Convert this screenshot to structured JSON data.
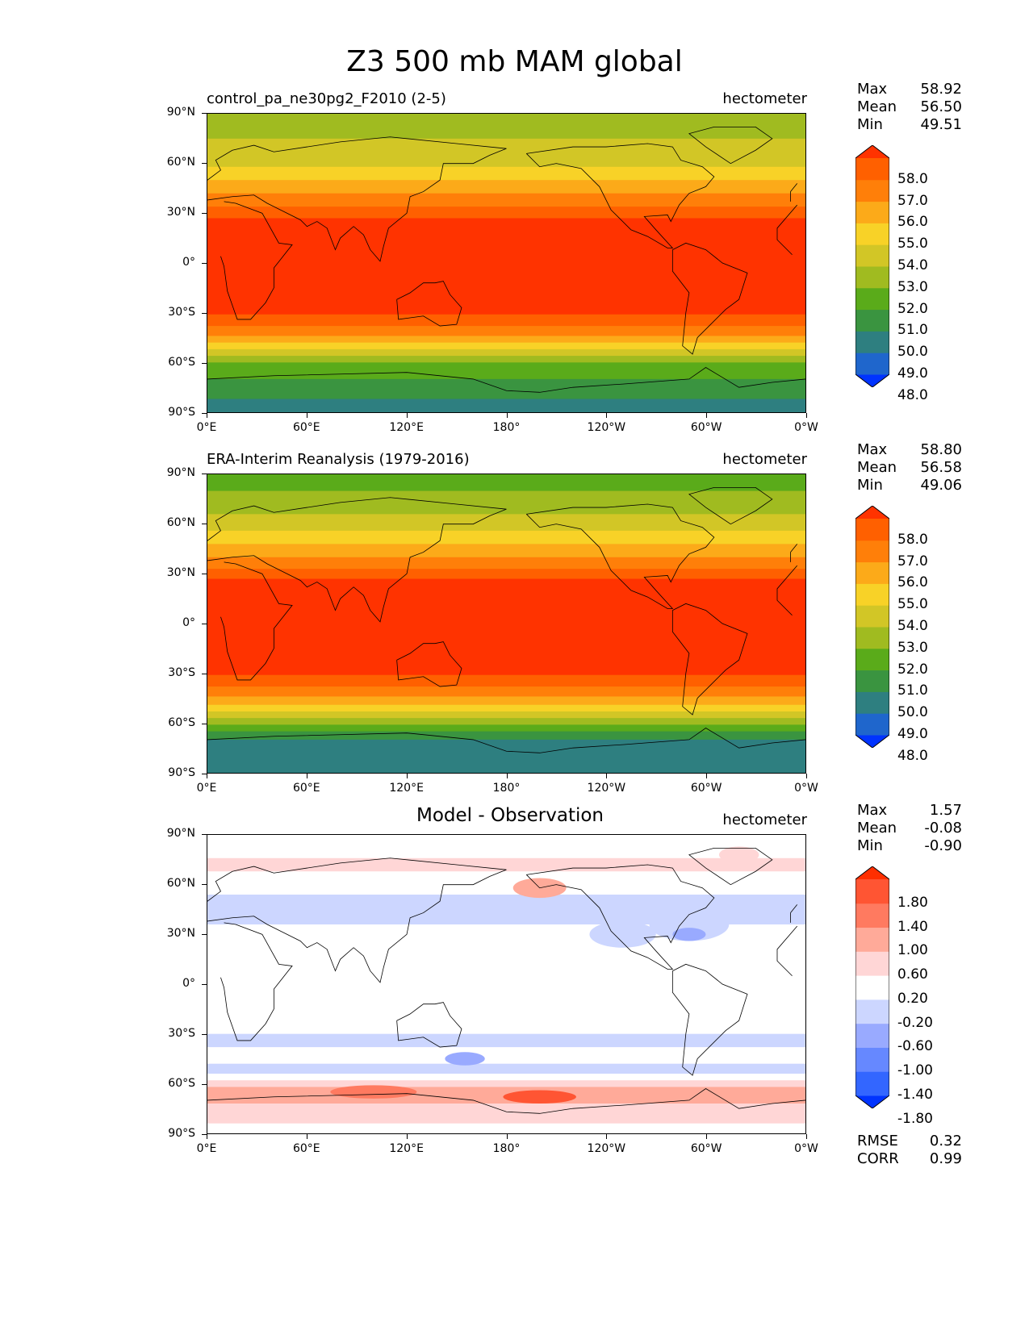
{
  "title": "Z3 500 mb MAM global",
  "panels": [
    {
      "title": "control_pa_ne30pg2_F2010 (2-5)",
      "units": "hectometer",
      "stats": [
        {
          "label": "Max",
          "value": "58.92"
        },
        {
          "label": "Mean",
          "value": "56.50"
        },
        {
          "label": "Min",
          "value": "49.51"
        }
      ],
      "colorbar": {
        "colors": [
          "#0033ff",
          "#1f66cc",
          "#2e7f80",
          "#3a9440",
          "#5aab1a",
          "#a0bb20",
          "#d2c626",
          "#f8d227",
          "#fcaa19",
          "#ff7f09",
          "#ff6000",
          "#ff3300"
        ],
        "labels": [
          "58.0",
          "57.0",
          "56.0",
          "55.0",
          "54.0",
          "53.0",
          "52.0",
          "51.0",
          "50.0",
          "49.0",
          "48.0"
        ]
      },
      "bands": [
        {
          "lat": 90,
          "color": "#a0bb20"
        },
        {
          "lat": 75,
          "color": "#d2c626"
        },
        {
          "lat": 58,
          "color": "#f8d227"
        },
        {
          "lat": 50,
          "color": "#fcaa19"
        },
        {
          "lat": 42,
          "color": "#ff7f09"
        },
        {
          "lat": 34,
          "color": "#ff6000"
        },
        {
          "lat": 27,
          "color": "#ff3300"
        },
        {
          "lat": -31,
          "color": "#ff6000"
        },
        {
          "lat": -38,
          "color": "#ff7f09"
        },
        {
          "lat": -44,
          "color": "#fcaa19"
        },
        {
          "lat": -48,
          "color": "#f8d227"
        },
        {
          "lat": -52,
          "color": "#d2c626"
        },
        {
          "lat": -56,
          "color": "#a0bb20"
        },
        {
          "lat": -60,
          "color": "#5aab1a"
        },
        {
          "lat": -70,
          "color": "#3a9440"
        },
        {
          "lat": -82,
          "color": "#2e7f80"
        }
      ]
    },
    {
      "title": "ERA-Interim Reanalysis (1979-2016)",
      "units": "hectometer",
      "stats": [
        {
          "label": "Max",
          "value": "58.80"
        },
        {
          "label": "Mean",
          "value": "56.58"
        },
        {
          "label": "Min",
          "value": "49.06"
        }
      ],
      "colorbar": {
        "colors": [
          "#0033ff",
          "#1f66cc",
          "#2e7f80",
          "#3a9440",
          "#5aab1a",
          "#a0bb20",
          "#d2c626",
          "#f8d227",
          "#fcaa19",
          "#ff7f09",
          "#ff6000",
          "#ff3300"
        ],
        "labels": [
          "58.0",
          "57.0",
          "56.0",
          "55.0",
          "54.0",
          "53.0",
          "52.0",
          "51.0",
          "50.0",
          "49.0",
          "48.0"
        ]
      },
      "bands": [
        {
          "lat": 90,
          "color": "#5aab1a"
        },
        {
          "lat": 80,
          "color": "#a0bb20"
        },
        {
          "lat": 66,
          "color": "#d2c626"
        },
        {
          "lat": 56,
          "color": "#f8d227"
        },
        {
          "lat": 48,
          "color": "#fcaa19"
        },
        {
          "lat": 40,
          "color": "#ff7f09"
        },
        {
          "lat": 33,
          "color": "#ff6000"
        },
        {
          "lat": 27,
          "color": "#ff3300"
        },
        {
          "lat": -31,
          "color": "#ff6000"
        },
        {
          "lat": -38,
          "color": "#ff7f09"
        },
        {
          "lat": -44,
          "color": "#fcaa19"
        },
        {
          "lat": -49,
          "color": "#f8d227"
        },
        {
          "lat": -53,
          "color": "#d2c626"
        },
        {
          "lat": -57,
          "color": "#a0bb20"
        },
        {
          "lat": -61,
          "color": "#5aab1a"
        },
        {
          "lat": -65,
          "color": "#3a9440"
        },
        {
          "lat": -70,
          "color": "#2e7f80"
        }
      ]
    },
    {
      "title": "Model - Observation",
      "units": "hectometer",
      "stats": [
        {
          "label": "Max",
          "value": "1.57"
        },
        {
          "label": "Mean",
          "value": "-0.08"
        },
        {
          "label": "Min",
          "value": "-0.90"
        }
      ],
      "extra": [
        {
          "label": "RMSE",
          "value": "0.32"
        },
        {
          "label": "CORR",
          "value": "0.99"
        }
      ],
      "colorbar": {
        "colors": [
          "#0033ff",
          "#3366ff",
          "#6688ff",
          "#99aaff",
          "#ccd6ff",
          "#ffffff",
          "#ffd6d6",
          "#ffaa99",
          "#ff7a60",
          "#ff5533",
          "#ff2f00"
        ],
        "labels": [
          "1.80",
          "1.40",
          "1.00",
          "0.60",
          "0.20",
          "-0.20",
          "-0.60",
          "-1.00",
          "-1.40",
          "-1.80"
        ]
      },
      "bands": [
        {
          "lat": 90,
          "color": "#ffffff"
        },
        {
          "lat": 76,
          "color": "#ffd6d6"
        },
        {
          "lat": 68,
          "color": "#ffffff"
        },
        {
          "lat": 54,
          "color": "#ccd6ff"
        },
        {
          "lat": 36,
          "color": "#ffffff"
        },
        {
          "lat": -30,
          "color": "#ccd6ff"
        },
        {
          "lat": -38,
          "color": "#ffffff"
        },
        {
          "lat": -48,
          "color": "#ccd6ff"
        },
        {
          "lat": -54,
          "color": "#ffffff"
        },
        {
          "lat": -58,
          "color": "#ffd6d6"
        },
        {
          "lat": -62,
          "color": "#ffaa99"
        },
        {
          "lat": -72,
          "color": "#ffd6d6"
        },
        {
          "lat": -84,
          "color": "#ffffff"
        }
      ],
      "blobs": [
        {
          "lon": 200,
          "lat": 58,
          "rx": 16,
          "ry": 6,
          "color": "#ffaa99"
        },
        {
          "lon": 100,
          "lat": -65,
          "rx": 26,
          "ry": 4,
          "color": "#ff7a60"
        },
        {
          "lon": 200,
          "lat": -68,
          "rx": 22,
          "ry": 4,
          "color": "#ff5533"
        },
        {
          "lon": 155,
          "lat": -45,
          "rx": 12,
          "ry": 4,
          "color": "#99aaff"
        },
        {
          "lon": 250,
          "lat": 30,
          "rx": 20,
          "ry": 8,
          "color": "#ccd6ff"
        },
        {
          "lon": 290,
          "lat": 36,
          "rx": 24,
          "ry": 10,
          "color": "#ccd6ff"
        },
        {
          "lon": 290,
          "lat": 30,
          "rx": 10,
          "ry": 4,
          "color": "#99aaff"
        },
        {
          "lon": 320,
          "lat": 78,
          "rx": 12,
          "ry": 5,
          "color": "#ffd6d6"
        }
      ]
    }
  ],
  "chart_data": [
    {
      "type": "heatmap",
      "title": "control_pa_ne30pg2_F2010 (2-5)",
      "suptitle": "Z3 500 mb MAM global",
      "units": "hectometer",
      "xlabel": "",
      "ylabel": "",
      "x_ticks": [
        "0°E",
        "60°E",
        "120°E",
        "180°",
        "120°W",
        "60°W",
        "0°W"
      ],
      "y_ticks": [
        "90°N",
        "60°N",
        "30°N",
        "0°",
        "30°S",
        "60°S",
        "90°S"
      ],
      "levels": [
        48.0,
        49.0,
        50.0,
        51.0,
        52.0,
        53.0,
        54.0,
        55.0,
        56.0,
        57.0,
        58.0
      ],
      "max": 58.92,
      "mean": 56.5,
      "min": 49.51
    },
    {
      "type": "heatmap",
      "title": "ERA-Interim Reanalysis (1979-2016)",
      "units": "hectometer",
      "x_ticks": [
        "0°E",
        "60°E",
        "120°E",
        "180°",
        "120°W",
        "60°W",
        "0°W"
      ],
      "y_ticks": [
        "90°N",
        "60°N",
        "30°N",
        "0°",
        "30°S",
        "60°S",
        "90°S"
      ],
      "levels": [
        48.0,
        49.0,
        50.0,
        51.0,
        52.0,
        53.0,
        54.0,
        55.0,
        56.0,
        57.0,
        58.0
      ],
      "max": 58.8,
      "mean": 56.58,
      "min": 49.06
    },
    {
      "type": "heatmap",
      "title": "Model - Observation",
      "units": "hectometer",
      "x_ticks": [
        "0°E",
        "60°E",
        "120°E",
        "180°",
        "120°W",
        "60°W",
        "0°W"
      ],
      "y_ticks": [
        "90°N",
        "60°N",
        "30°N",
        "0°",
        "30°S",
        "60°S",
        "90°S"
      ],
      "levels": [
        -1.8,
        -1.4,
        -1.0,
        -0.6,
        -0.2,
        0.2,
        0.6,
        1.0,
        1.4,
        1.8
      ],
      "max": 1.57,
      "mean": -0.08,
      "min": -0.9,
      "rmse": 0.32,
      "corr": 0.99
    }
  ],
  "axes": {
    "x_ticks": [
      "0°E",
      "60°E",
      "120°E",
      "180°",
      "120°W",
      "60°W",
      "0°W"
    ],
    "y_ticks": [
      "90°N",
      "60°N",
      "30°N",
      "0°",
      "30°S",
      "60°S",
      "90°S"
    ]
  }
}
